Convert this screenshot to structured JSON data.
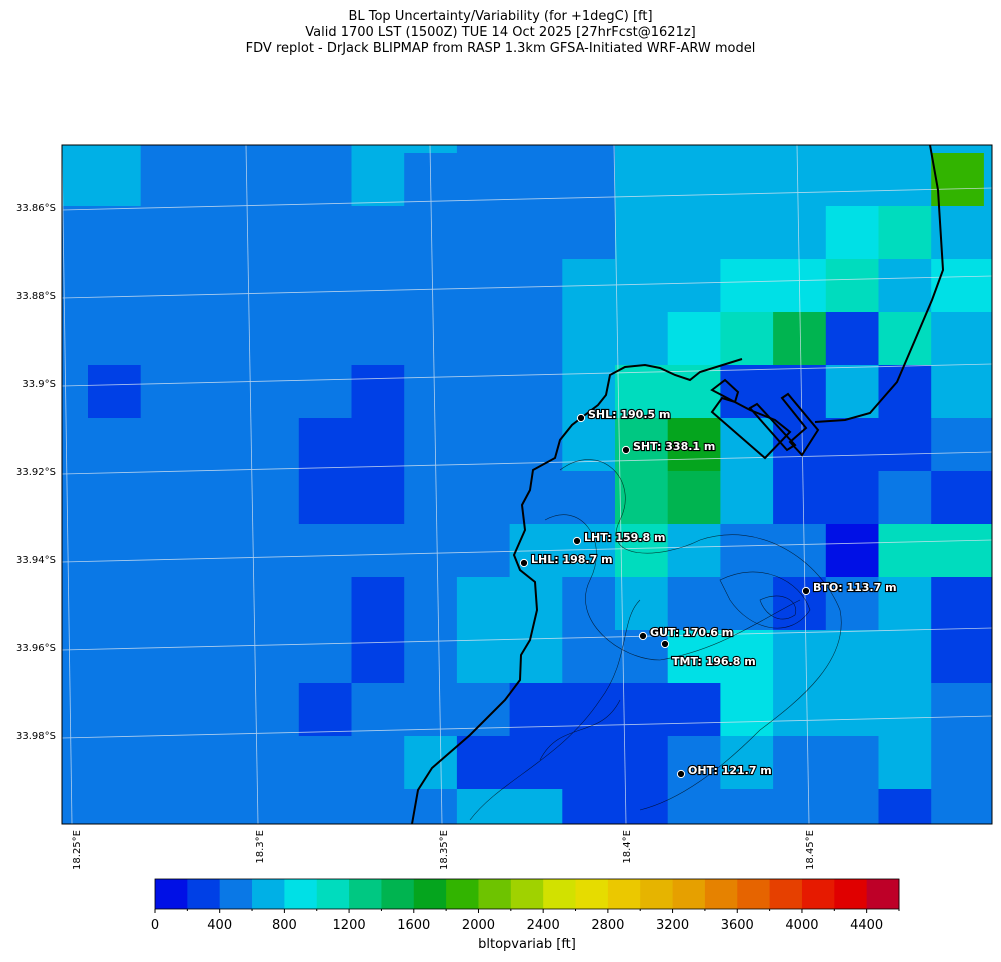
{
  "title": {
    "line1": "BL Top Uncertainty/Variability (for +1degC) [ft]",
    "line2": "Valid 1700 LST (1500Z) TUE 14 Oct 2025 [27hrFcst@1621z]",
    "line3": "FDV replot - DrJack BLIPMAP from RASP 1.3km GFSA-Initiated WRF-ARW model"
  },
  "axes": {
    "lat_ticks": [
      "33.86°S",
      "33.88°S",
      "33.9°S",
      "33.92°S",
      "33.94°S",
      "33.96°S",
      "33.98°S"
    ],
    "lon_ticks": [
      "18.25°E",
      "18.3°E",
      "18.35°E",
      "18.4°E",
      "18.45°E"
    ]
  },
  "colorbar": {
    "label": "bltopvariab [ft]",
    "ticks": [
      "0",
      "400",
      "800",
      "1200",
      "1600",
      "2000",
      "2400",
      "2800",
      "3200",
      "3600",
      "4000",
      "4400"
    ],
    "colors": [
      "#0010e6",
      "#0040e6",
      "#0a78e6",
      "#00b0e6",
      "#00e0e6",
      "#00dcbe",
      "#00c882",
      "#00b450",
      "#05a51e",
      "#32b400",
      "#6ec300",
      "#a0d200",
      "#d2e100",
      "#e6dc00",
      "#ebc800",
      "#e6b400",
      "#e6a000",
      "#e68200",
      "#e66400",
      "#e64000",
      "#e61a00",
      "#e00000",
      "#be0028"
    ],
    "bin_size_ft": 200
  },
  "grid_bins": [
    "3322223322233333333",
    "3322223222233333393",
    "2222222222233334533",
    "2222222222333445344",
    "2222222222334571533",
    "2122221222355113133",
    "2222211222368311122",
    "2222211222267311211",
    "2222222223353220555",
    "2222221233232212311",
    "2222221233224433311",
    "2222212221111433322",
    "2222222311112322322",
    "2222222233112222122"
  ],
  "stations": [
    {
      "label": "SHL: 190.5 m"
    },
    {
      "label": "SHT: 338.1 m"
    },
    {
      "label": "LHT: 159.8 m"
    },
    {
      "label": "LHL: 198.7 m"
    },
    {
      "label": "BTO: 113.7 m"
    },
    {
      "label": "GUT: 170.6 m"
    },
    {
      "label": "TMT: 196.8 m"
    },
    {
      "label": "OHT: 121.7 m"
    }
  ]
}
